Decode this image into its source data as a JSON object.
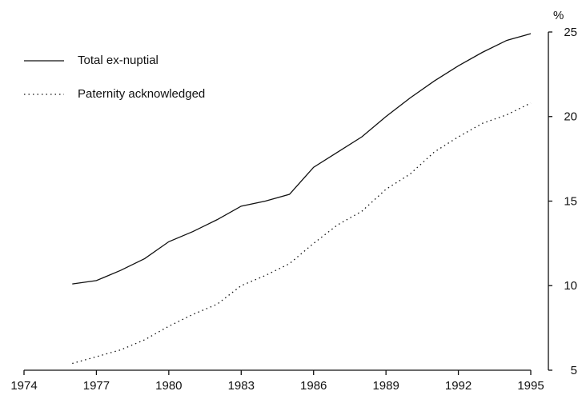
{
  "chart_data": {
    "type": "line",
    "y_unit": "%",
    "x": [
      1976,
      1977,
      1978,
      1979,
      1980,
      1981,
      1982,
      1983,
      1984,
      1985,
      1986,
      1987,
      1988,
      1989,
      1990,
      1991,
      1992,
      1993,
      1994,
      1995
    ],
    "series": [
      {
        "name": "Total ex-nuptial",
        "color": "#111111",
        "style": "solid",
        "values": [
          10.1,
          10.3,
          10.9,
          11.6,
          12.6,
          13.2,
          13.9,
          14.7,
          15.0,
          15.4,
          17.0,
          17.9,
          18.8,
          20.0,
          21.1,
          22.1,
          23.0,
          23.8,
          24.5,
          24.9
        ]
      },
      {
        "name": "Paternity acknowledged",
        "color": "#111111",
        "style": "dotted",
        "values": [
          5.4,
          5.8,
          6.2,
          6.8,
          7.6,
          8.3,
          8.9,
          10.0,
          10.6,
          11.3,
          12.5,
          13.6,
          14.4,
          15.7,
          16.6,
          17.9,
          18.8,
          19.6,
          20.1,
          20.8
        ]
      }
    ],
    "xlim": [
      1974,
      1995
    ],
    "xticks": [
      1974,
      1977,
      1980,
      1983,
      1986,
      1989,
      1992,
      1995
    ],
    "ylim": [
      5,
      25
    ],
    "yticks": [
      5,
      10,
      15,
      20,
      25
    ],
    "legend": "upper left"
  }
}
